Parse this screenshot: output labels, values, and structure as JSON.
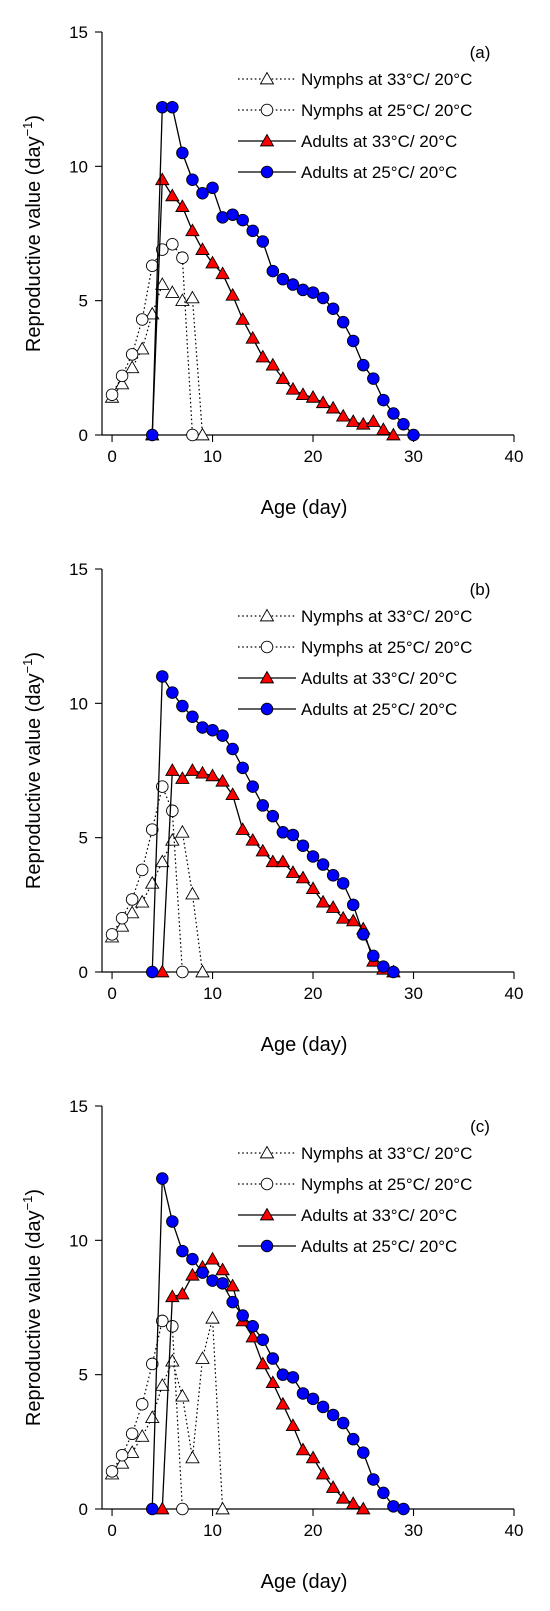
{
  "legend_labels": [
    "Nymphs at 33°C/ 20°C",
    "Nymphs at 25°C/ 20°C",
    "Adults at 33°C/ 20°C",
    "Adults at 25°C/ 20°C"
  ],
  "styles": [
    {
      "marker": "triangle",
      "fill": "#ffffff",
      "stroke": "#000000",
      "line": "dotted"
    },
    {
      "marker": "circle",
      "fill": "#ffffff",
      "stroke": "#000000",
      "line": "dotted"
    },
    {
      "marker": "triangle",
      "fill": "#ff0000",
      "stroke": "#000000",
      "line": "solid"
    },
    {
      "marker": "circle",
      "fill": "#0000ff",
      "stroke": "#000000",
      "line": "solid"
    }
  ],
  "chart_data": [
    {
      "type": "line",
      "panel_label": "(a)",
      "xlabel": "Age (day)",
      "ylabel_main": "Reproductive value (day",
      "ylabel_sup": "−1",
      "ylabel_close": ")",
      "xlim": [
        -1,
        40
      ],
      "ylim": [
        0,
        15
      ],
      "xticks": [
        0,
        10,
        20,
        30,
        40
      ],
      "yticks": [
        0,
        5,
        10,
        15
      ],
      "legend_position": "top-right",
      "grid": false,
      "series": [
        {
          "name": "Nymphs at 33°C/ 20°C",
          "points": [
            [
              0,
              1.4
            ],
            [
              1,
              1.9
            ],
            [
              2,
              2.5
            ],
            [
              3,
              3.2
            ],
            [
              4,
              4.5
            ],
            [
              5,
              5.6
            ],
            [
              6,
              5.3
            ],
            [
              7,
              5.0
            ],
            [
              8,
              5.1
            ],
            [
              9,
              0
            ]
          ]
        },
        {
          "name": "Nymphs at 25°C/ 20°C",
          "points": [
            [
              0,
              1.5
            ],
            [
              1,
              2.2
            ],
            [
              2,
              3.0
            ],
            [
              3,
              4.3
            ],
            [
              4,
              6.3
            ],
            [
              5,
              6.9
            ],
            [
              6,
              7.1
            ],
            [
              7,
              6.6
            ],
            [
              8,
              0
            ]
          ]
        },
        {
          "name": "Adults at 33°C/ 20°C",
          "points": [
            [
              4,
              0
            ],
            [
              5,
              9.5
            ],
            [
              6,
              8.9
            ],
            [
              7,
              8.5
            ],
            [
              8,
              7.6
            ],
            [
              9,
              6.9
            ],
            [
              10,
              6.4
            ],
            [
              11,
              6.0
            ],
            [
              12,
              5.2
            ],
            [
              13,
              4.3
            ],
            [
              14,
              3.6
            ],
            [
              15,
              2.9
            ],
            [
              16,
              2.6
            ],
            [
              17,
              2.1
            ],
            [
              18,
              1.7
            ],
            [
              19,
              1.5
            ],
            [
              20,
              1.4
            ],
            [
              21,
              1.2
            ],
            [
              22,
              1.0
            ],
            [
              23,
              0.7
            ],
            [
              24,
              0.5
            ],
            [
              25,
              0.4
            ],
            [
              26,
              0.5
            ],
            [
              27,
              0.2
            ],
            [
              28,
              0
            ]
          ]
        },
        {
          "name": "Adults at 25°C/ 20°C",
          "points": [
            [
              4,
              0
            ],
            [
              5,
              12.2
            ],
            [
              6,
              12.2
            ],
            [
              7,
              10.5
            ],
            [
              8,
              9.5
            ],
            [
              9,
              9.0
            ],
            [
              10,
              9.2
            ],
            [
              11,
              8.1
            ],
            [
              12,
              8.2
            ],
            [
              13,
              8.0
            ],
            [
              14,
              7.6
            ],
            [
              15,
              7.2
            ],
            [
              16,
              6.1
            ],
            [
              17,
              5.8
            ],
            [
              18,
              5.6
            ],
            [
              19,
              5.4
            ],
            [
              20,
              5.3
            ],
            [
              21,
              5.1
            ],
            [
              22,
              4.7
            ],
            [
              23,
              4.2
            ],
            [
              24,
              3.5
            ],
            [
              25,
              2.6
            ],
            [
              26,
              2.1
            ],
            [
              27,
              1.3
            ],
            [
              28,
              0.8
            ],
            [
              29,
              0.4
            ],
            [
              30,
              0
            ]
          ]
        }
      ]
    },
    {
      "type": "line",
      "panel_label": "(b)",
      "xlabel": "Age (day)",
      "ylabel_main": "Reproductive value (day",
      "ylabel_sup": "−1",
      "ylabel_close": ")",
      "xlim": [
        -1,
        40
      ],
      "ylim": [
        0,
        15
      ],
      "xticks": [
        0,
        10,
        20,
        30,
        40
      ],
      "yticks": [
        0,
        5,
        10,
        15
      ],
      "legend_position": "top-right",
      "grid": false,
      "series": [
        {
          "name": "Nymphs at 33°C/ 20°C",
          "points": [
            [
              0,
              1.3
            ],
            [
              1,
              1.7
            ],
            [
              2,
              2.2
            ],
            [
              3,
              2.6
            ],
            [
              4,
              3.3
            ],
            [
              5,
              4.1
            ],
            [
              6,
              4.9
            ],
            [
              7,
              5.2
            ],
            [
              8,
              2.9
            ],
            [
              9,
              0
            ]
          ]
        },
        {
          "name": "Nymphs at 25°C/ 20°C",
          "points": [
            [
              0,
              1.4
            ],
            [
              1,
              2.0
            ],
            [
              2,
              2.7
            ],
            [
              3,
              3.8
            ],
            [
              4,
              5.3
            ],
            [
              5,
              6.9
            ],
            [
              6,
              6.0
            ],
            [
              7,
              0
            ]
          ]
        },
        {
          "name": "Adults at 33°C/ 20°C",
          "points": [
            [
              5,
              0
            ],
            [
              6,
              7.5
            ],
            [
              7,
              7.2
            ],
            [
              8,
              7.5
            ],
            [
              9,
              7.4
            ],
            [
              10,
              7.3
            ],
            [
              11,
              7.1
            ],
            [
              12,
              6.6
            ],
            [
              13,
              5.3
            ],
            [
              14,
              4.9
            ],
            [
              15,
              4.5
            ],
            [
              16,
              4.1
            ],
            [
              17,
              4.1
            ],
            [
              18,
              3.7
            ],
            [
              19,
              3.5
            ],
            [
              20,
              3.1
            ],
            [
              21,
              2.6
            ],
            [
              22,
              2.4
            ],
            [
              23,
              2.0
            ],
            [
              24,
              1.9
            ],
            [
              25,
              1.6
            ],
            [
              26,
              0.4
            ],
            [
              27,
              0.1
            ],
            [
              28,
              0
            ]
          ]
        },
        {
          "name": "Adults at 25°C/ 20°C",
          "points": [
            [
              4,
              0
            ],
            [
              5,
              11.0
            ],
            [
              6,
              10.4
            ],
            [
              7,
              9.9
            ],
            [
              8,
              9.5
            ],
            [
              9,
              9.1
            ],
            [
              10,
              9.0
            ],
            [
              11,
              8.8
            ],
            [
              12,
              8.3
            ],
            [
              13,
              7.6
            ],
            [
              14,
              6.9
            ],
            [
              15,
              6.2
            ],
            [
              16,
              5.8
            ],
            [
              17,
              5.2
            ],
            [
              18,
              5.1
            ],
            [
              19,
              4.7
            ],
            [
              20,
              4.3
            ],
            [
              21,
              4.0
            ],
            [
              22,
              3.6
            ],
            [
              23,
              3.3
            ],
            [
              24,
              2.5
            ],
            [
              25,
              1.4
            ],
            [
              26,
              0.6
            ],
            [
              27,
              0.2
            ],
            [
              28,
              0
            ]
          ]
        }
      ]
    },
    {
      "type": "line",
      "panel_label": "(c)",
      "xlabel": "Age (day)",
      "ylabel_main": "Reproductive value (day",
      "ylabel_sup": "−1",
      "ylabel_close": ")",
      "xlim": [
        -1,
        40
      ],
      "ylim": [
        0,
        15
      ],
      "xticks": [
        0,
        10,
        20,
        30,
        40
      ],
      "yticks": [
        0,
        5,
        10,
        15
      ],
      "legend_position": "top-right",
      "grid": false,
      "series": [
        {
          "name": "Nymphs at 33°C/ 20°C",
          "points": [
            [
              0,
              1.3
            ],
            [
              1,
              1.7
            ],
            [
              2,
              2.1
            ],
            [
              3,
              2.7
            ],
            [
              4,
              3.4
            ],
            [
              5,
              4.6
            ],
            [
              6,
              5.5
            ],
            [
              7,
              4.2
            ],
            [
              8,
              1.9
            ],
            [
              9,
              5.6
            ],
            [
              10,
              7.1
            ],
            [
              11,
              0
            ]
          ]
        },
        {
          "name": "Nymphs at 25°C/ 20°C",
          "points": [
            [
              0,
              1.4
            ],
            [
              1,
              2.0
            ],
            [
              2,
              2.8
            ],
            [
              3,
              3.9
            ],
            [
              4,
              5.4
            ],
            [
              5,
              7.0
            ],
            [
              6,
              6.8
            ],
            [
              7,
              0
            ]
          ]
        },
        {
          "name": "Adults at 33°C/ 20°C",
          "points": [
            [
              5,
              0
            ],
            [
              6,
              7.9
            ],
            [
              7,
              8.0
            ],
            [
              8,
              8.7
            ],
            [
              9,
              9.0
            ],
            [
              10,
              9.3
            ],
            [
              11,
              8.9
            ],
            [
              12,
              8.3
            ],
            [
              13,
              7.0
            ],
            [
              14,
              6.4
            ],
            [
              15,
              5.4
            ],
            [
              16,
              4.7
            ],
            [
              17,
              3.9
            ],
            [
              18,
              3.1
            ],
            [
              19,
              2.2
            ],
            [
              20,
              1.9
            ],
            [
              21,
              1.3
            ],
            [
              22,
              0.8
            ],
            [
              23,
              0.4
            ],
            [
              24,
              0.2
            ],
            [
              25,
              0
            ]
          ]
        },
        {
          "name": "Adults at 25°C/ 20°C",
          "points": [
            [
              4,
              0
            ],
            [
              5,
              12.3
            ],
            [
              6,
              10.7
            ],
            [
              7,
              9.6
            ],
            [
              8,
              9.3
            ],
            [
              9,
              8.8
            ],
            [
              10,
              8.5
            ],
            [
              11,
              8.4
            ],
            [
              12,
              7.7
            ],
            [
              13,
              7.2
            ],
            [
              14,
              6.8
            ],
            [
              15,
              6.3
            ],
            [
              16,
              5.6
            ],
            [
              17,
              5.0
            ],
            [
              18,
              4.9
            ],
            [
              19,
              4.3
            ],
            [
              20,
              4.1
            ],
            [
              21,
              3.8
            ],
            [
              22,
              3.5
            ],
            [
              23,
              3.2
            ],
            [
              24,
              2.6
            ],
            [
              25,
              2.1
            ],
            [
              26,
              1.1
            ],
            [
              27,
              0.6
            ],
            [
              28,
              0.1
            ],
            [
              29,
              0
            ]
          ]
        }
      ]
    }
  ]
}
